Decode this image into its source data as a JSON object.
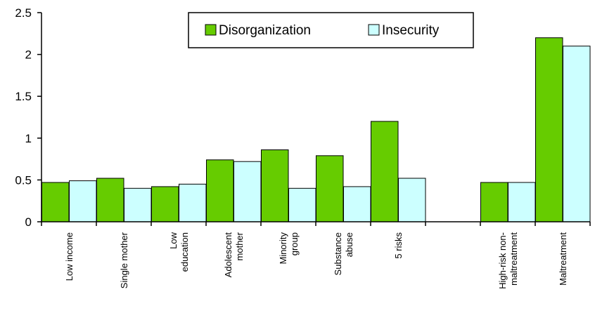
{
  "chart_data": {
    "type": "bar",
    "categories": [
      [
        "Low income"
      ],
      [
        "Single mother"
      ],
      [
        "Low",
        "education"
      ],
      [
        "Adolescent",
        "mother"
      ],
      [
        "Minority",
        "group"
      ],
      [
        "Substance",
        "abuse"
      ],
      [
        "5 risks"
      ],
      [
        ""
      ],
      [
        "High-risk non-",
        "maltreatment"
      ],
      [
        "Maltreatment"
      ]
    ],
    "series": [
      {
        "name": "Disorganization",
        "color": "#66cc00",
        "values": [
          0.47,
          0.52,
          0.42,
          0.74,
          0.86,
          0.79,
          1.2,
          null,
          0.47,
          2.2
        ]
      },
      {
        "name": "Insecurity",
        "color": "#ccffff",
        "values": [
          0.49,
          0.4,
          0.45,
          0.72,
          0.4,
          0.42,
          0.52,
          null,
          0.47,
          2.1
        ]
      }
    ],
    "yticks": [
      "0",
      "0.5",
      "1",
      "1.5",
      "2",
      "2.5"
    ],
    "ylim": [
      0,
      2.5
    ],
    "grid": false,
    "legend_position": "top-center"
  }
}
